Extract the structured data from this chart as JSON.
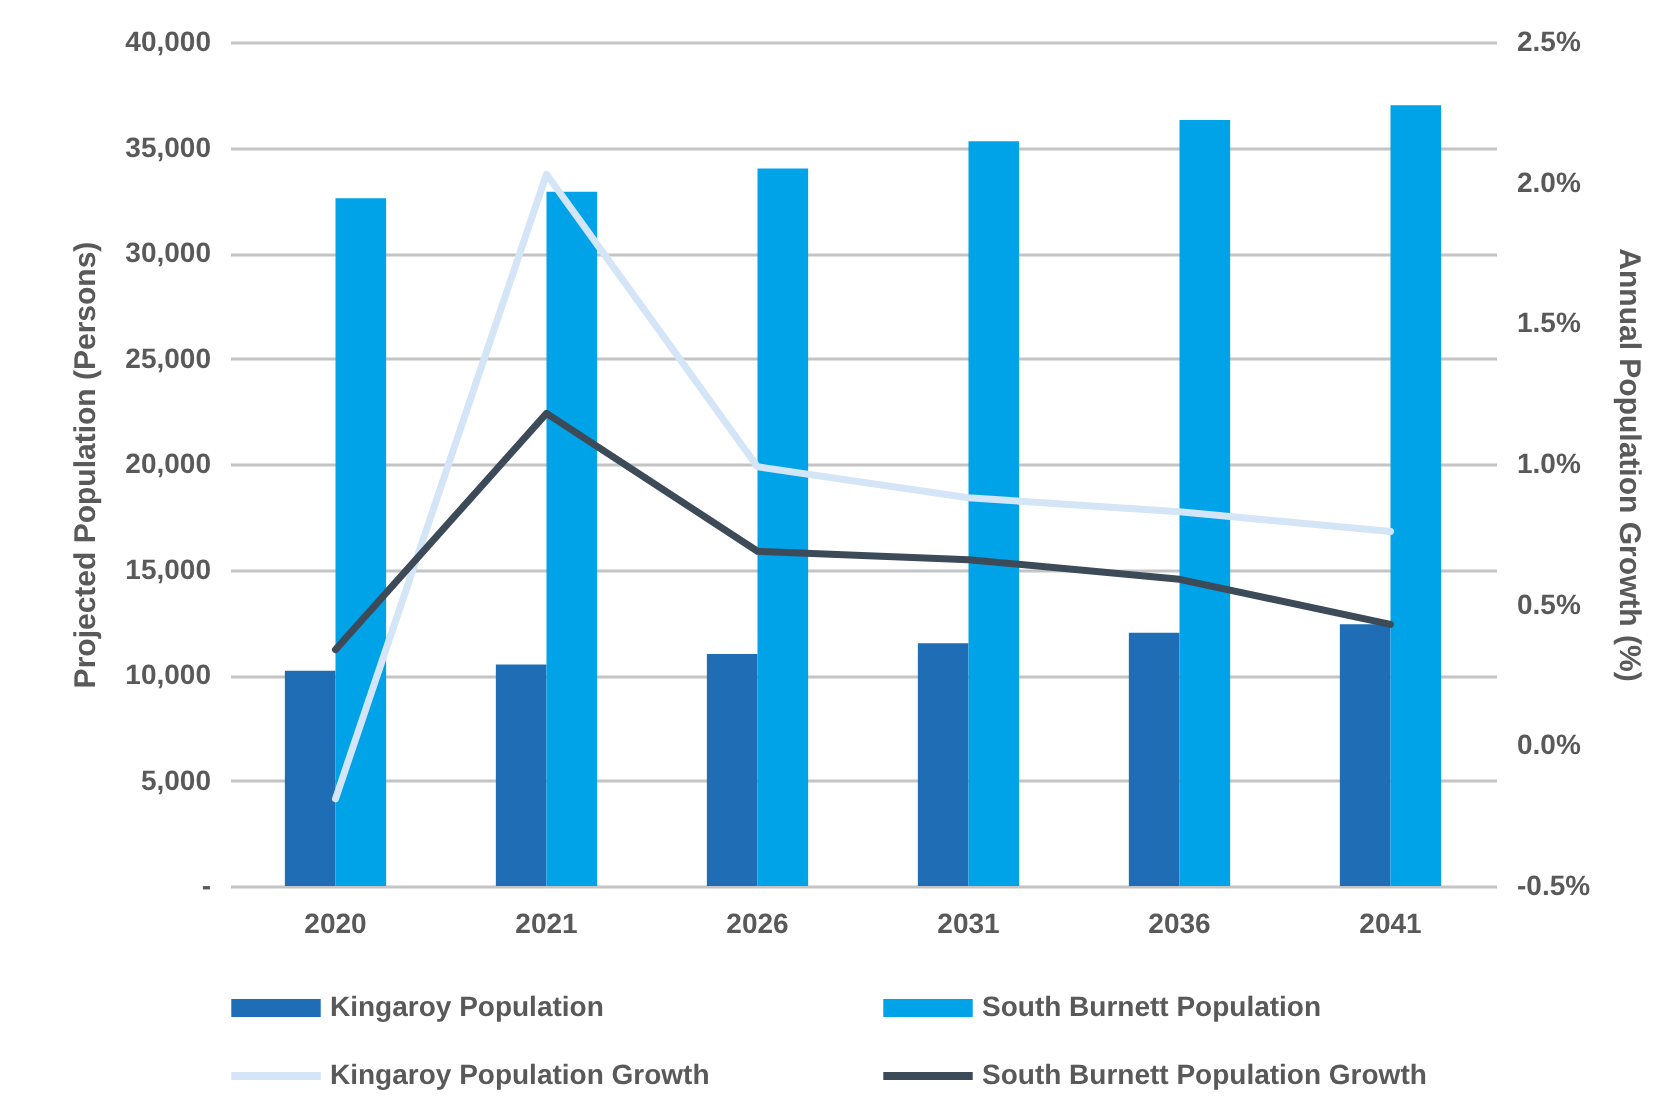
{
  "chart_data": {
    "type": "bar",
    "categories": [
      "2020",
      "2021",
      "2026",
      "2031",
      "2036",
      "2041"
    ],
    "ylabel": "Projected Population (Persons)",
    "y2label": "Annual Population Growth (%)",
    "ylim": [
      0,
      40000
    ],
    "yticks": [
      {
        "value": 0,
        "label": "-"
      },
      {
        "value": 5000,
        "label": "5,000"
      },
      {
        "value": 10000,
        "label": "10,000"
      },
      {
        "value": 15000,
        "label": "15,000"
      },
      {
        "value": 20000,
        "label": "20,000"
      },
      {
        "value": 25000,
        "label": "25,000"
      },
      {
        "value": 30000,
        "label": "30,000"
      },
      {
        "value": 35000,
        "label": "35,000"
      },
      {
        "value": 40000,
        "label": "40,000"
      }
    ],
    "y2lim": [
      -0.5,
      2.5
    ],
    "y2ticks": [
      {
        "value": -0.5,
        "label": "-0.5%"
      },
      {
        "value": 0,
        "label": "0.0%"
      },
      {
        "value": 0.5,
        "label": "0.5%"
      },
      {
        "value": 1,
        "label": "1.0%"
      },
      {
        "value": 1.5,
        "label": "1.5%"
      },
      {
        "value": 2,
        "label": "2.0%"
      },
      {
        "value": 2.5,
        "label": "2.5%"
      }
    ],
    "series": [
      {
        "name": "Kingaroy Population",
        "color": "#1f6eb5",
        "values": [
          10200,
          10500,
          11000,
          11500,
          12000,
          12400
        ]
      },
      {
        "name": "South Burnett Population",
        "color": "#00a2e8",
        "values": [
          32600,
          32900,
          34000,
          35300,
          36300,
          37000
        ]
      },
      {
        "name": "Kingaroy Population Growth",
        "type": "line",
        "axis": "y2",
        "color": "#d3e5f6",
        "values": [
          -0.19,
          2.03,
          0.99,
          0.88,
          0.83,
          0.76
        ]
      },
      {
        "name": "South Burnett Population Growth",
        "type": "line",
        "axis": "y2",
        "color": "#3d4b59",
        "values": [
          0.34,
          1.18,
          0.69,
          0.66,
          0.59,
          0.43
        ]
      }
    ],
    "grid": "y",
    "legend": "bottom"
  }
}
